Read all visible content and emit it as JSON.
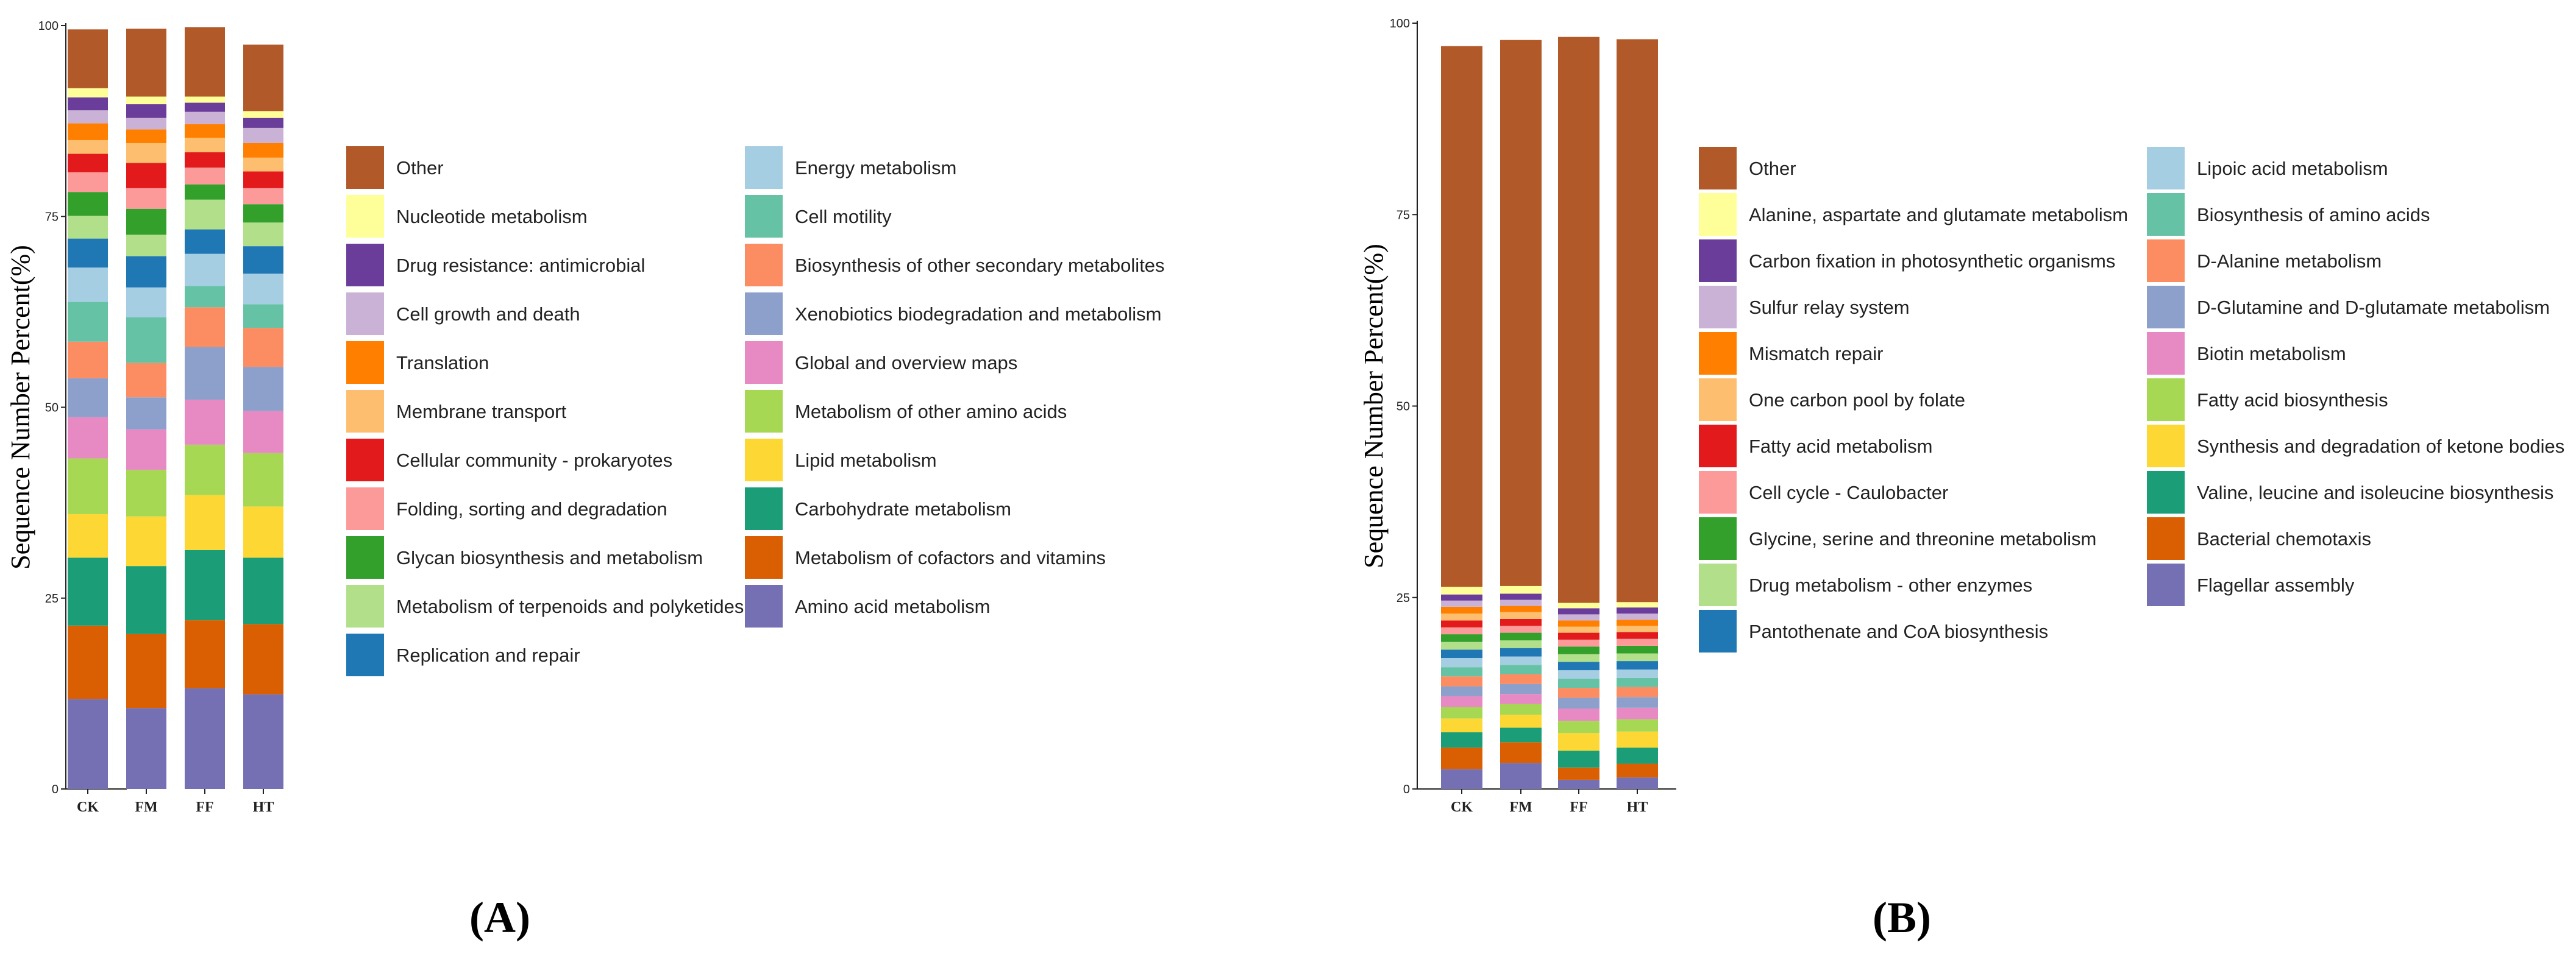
{
  "chart_data": [
    {
      "type": "bar",
      "stacked": true,
      "panel_label": "(A)",
      "ylabel": "Sequence Number Percent(%)",
      "ylim": [
        0,
        100
      ],
      "yticks": [
        "0",
        "25",
        "50",
        "75",
        "100"
      ],
      "categories": [
        "CK",
        "FM",
        "FF",
        "HT"
      ],
      "series": [
        {
          "name": "Amino acid metabolism",
          "color": "#7570B3",
          "values": [
            11.8,
            10.6,
            13.2,
            12.4
          ]
        },
        {
          "name": "Metabolism of cofactors and vitamins",
          "color": "#D95F02",
          "values": [
            9.6,
            9.7,
            8.9,
            9.2
          ]
        },
        {
          "name": "Carbohydrate metabolism",
          "color": "#1B9E77",
          "values": [
            8.9,
            8.9,
            9.2,
            8.7
          ]
        },
        {
          "name": "Lipid metabolism",
          "color": "#FDD835",
          "values": [
            5.7,
            6.5,
            7.2,
            6.7
          ]
        },
        {
          "name": "Metabolism of other amino acids",
          "color": "#A6D854",
          "values": [
            7.3,
            6.1,
            6.6,
            7.0
          ]
        },
        {
          "name": "Global and overview maps",
          "color": "#E78AC3",
          "values": [
            5.4,
            5.3,
            5.9,
            5.5
          ]
        },
        {
          "name": "Xenobiotics biodegradation and metabolism",
          "color": "#8DA0CB",
          "values": [
            5.1,
            4.2,
            6.9,
            5.8
          ]
        },
        {
          "name": "Biosynthesis of other secondary metabolites",
          "color": "#FC8D62",
          "values": [
            4.8,
            4.5,
            5.2,
            5.1
          ]
        },
        {
          "name": "Cell motility",
          "color": "#66C2A5",
          "values": [
            5.2,
            6.0,
            2.8,
            3.1
          ]
        },
        {
          "name": "Energy metabolism",
          "color": "#A6CEE3",
          "values": [
            4.5,
            3.9,
            4.2,
            4.0
          ]
        },
        {
          "name": "Replication and repair",
          "color": "#1F78B4",
          "values": [
            3.8,
            4.1,
            3.2,
            3.6
          ]
        },
        {
          "name": "Metabolism of terpenoids and polyketides",
          "color": "#B2DF8A",
          "values": [
            3.0,
            2.8,
            3.9,
            3.1
          ]
        },
        {
          "name": "Glycan biosynthesis and metabolism",
          "color": "#33A02C",
          "values": [
            3.1,
            3.4,
            2.0,
            2.4
          ]
        },
        {
          "name": "Folding, sorting and degradation",
          "color": "#FB9A99",
          "values": [
            2.6,
            2.7,
            2.2,
            2.1
          ]
        },
        {
          "name": "Cellular community - prokaryotes",
          "color": "#E31A1C",
          "values": [
            2.4,
            3.3,
            2.0,
            2.2
          ]
        },
        {
          "name": "Membrane transport",
          "color": "#FDBF6F",
          "values": [
            1.8,
            2.6,
            1.9,
            1.8
          ]
        },
        {
          "name": "Translation",
          "color": "#FF7F00",
          "values": [
            2.2,
            1.8,
            1.8,
            1.9
          ]
        },
        {
          "name": "Cell growth and death",
          "color": "#CAB2D6",
          "values": [
            1.7,
            1.5,
            1.6,
            2.0
          ]
        },
        {
          "name": "Drug resistance: antimicrobial",
          "color": "#6A3D9A",
          "values": [
            1.7,
            1.8,
            1.2,
            1.3
          ]
        },
        {
          "name": "Nucleotide metabolism",
          "color": "#FFFF99",
          "values": [
            1.2,
            1.0,
            0.8,
            0.9
          ]
        },
        {
          "name": "Other",
          "color": "#B15928",
          "values": [
            7.7,
            8.9,
            9.1,
            8.7
          ]
        }
      ],
      "legend_col1": [
        "Other",
        "Nucleotide metabolism",
        "Drug resistance: antimicrobial",
        "Cell growth and death",
        "Translation",
        "Membrane transport",
        "Cellular community - prokaryotes",
        "Folding, sorting and degradation",
        "Glycan biosynthesis and metabolism",
        "Metabolism of terpenoids and polyketides",
        "Replication and repair"
      ],
      "legend_col2": [
        "Energy metabolism",
        "Cell motility",
        "Biosynthesis of other secondary metabolites",
        "Xenobiotics biodegradation and metabolism",
        "Global and overview maps",
        "Metabolism of other amino acids",
        "Lipid metabolism",
        "Carbohydrate metabolism",
        "Metabolism of cofactors and vitamins",
        "Amino acid metabolism"
      ]
    },
    {
      "type": "bar",
      "stacked": true,
      "panel_label": "(B)",
      "ylabel": "Sequence Number Percent(%)",
      "ylim": [
        0,
        100
      ],
      "yticks": [
        "0",
        "25",
        "50",
        "75",
        "100"
      ],
      "categories": [
        "CK",
        "FM",
        "FF",
        "HT"
      ],
      "series": [
        {
          "name": "Flagellar assembly",
          "color": "#7570B3",
          "values": [
            2.6,
            3.4,
            1.2,
            1.5
          ]
        },
        {
          "name": "Bacterial chemotaxis",
          "color": "#D95F02",
          "values": [
            2.8,
            2.7,
            1.6,
            1.8
          ]
        },
        {
          "name": "Valine, leucine and isoleucine biosynthesis",
          "color": "#1B9E77",
          "values": [
            2.0,
            1.9,
            2.2,
            2.1
          ]
        },
        {
          "name": "Synthesis and degradation of ketone bodies",
          "color": "#FDD835",
          "values": [
            1.8,
            1.7,
            2.3,
            2.1
          ]
        },
        {
          "name": "Fatty acid biosynthesis",
          "color": "#A6D854",
          "values": [
            1.5,
            1.4,
            1.6,
            1.6
          ]
        },
        {
          "name": "Biotin metabolism",
          "color": "#E78AC3",
          "values": [
            1.4,
            1.3,
            1.6,
            1.5
          ]
        },
        {
          "name": "D-Glutamine and D-glutamate metabolism",
          "color": "#8DA0CB",
          "values": [
            1.3,
            1.3,
            1.4,
            1.4
          ]
        },
        {
          "name": "D-Alanine metabolism",
          "color": "#FC8D62",
          "values": [
            1.3,
            1.3,
            1.3,
            1.3
          ]
        },
        {
          "name": "Biosynthesis of amino acids",
          "color": "#66C2A5",
          "values": [
            1.2,
            1.2,
            1.2,
            1.2
          ]
        },
        {
          "name": "Lipoic acid metabolism",
          "color": "#A6CEE3",
          "values": [
            1.2,
            1.1,
            1.1,
            1.1
          ]
        },
        {
          "name": "Pantothenate and CoA biosynthesis",
          "color": "#1F78B4",
          "values": [
            1.1,
            1.1,
            1.1,
            1.1
          ]
        },
        {
          "name": "Drug metabolism - other enzymes",
          "color": "#B2DF8A",
          "values": [
            1.0,
            1.0,
            1.0,
            1.0
          ]
        },
        {
          "name": "Glycine, serine and threonine metabolism",
          "color": "#33A02C",
          "values": [
            1.0,
            1.0,
            1.0,
            1.0
          ]
        },
        {
          "name": "Cell cycle - Caulobacter",
          "color": "#FB9A99",
          "values": [
            0.9,
            0.9,
            0.9,
            0.9
          ]
        },
        {
          "name": "Fatty acid metabolism",
          "color": "#E31A1C",
          "values": [
            0.9,
            0.9,
            0.9,
            0.9
          ]
        },
        {
          "name": "One carbon pool by folate",
          "color": "#FDBF6F",
          "values": [
            0.9,
            0.9,
            0.8,
            0.8
          ]
        },
        {
          "name": "Mismatch repair",
          "color": "#FF7F00",
          "values": [
            0.9,
            0.8,
            0.8,
            0.8
          ]
        },
        {
          "name": "Sulfur relay system",
          "color": "#CAB2D6",
          "values": [
            0.8,
            0.8,
            0.8,
            0.8
          ]
        },
        {
          "name": "Carbon fixation in photosynthetic organisms",
          "color": "#6A3D9A",
          "values": [
            0.8,
            0.8,
            0.8,
            0.8
          ]
        },
        {
          "name": "Alanine, aspartate and glutamate metabolism",
          "color": "#FFFF99",
          "values": [
            1.0,
            1.0,
            0.7,
            0.7
          ]
        },
        {
          "name": "Other",
          "color": "#B15928",
          "values": [
            70.6,
            71.3,
            73.9,
            73.5
          ]
        }
      ],
      "legend_col1": [
        "Other",
        "Alanine, aspartate and glutamate metabolism",
        "Carbon fixation in photosynthetic organisms",
        "Sulfur relay system",
        "Mismatch repair",
        "One carbon pool by folate",
        "Fatty acid metabolism",
        "Cell cycle - Caulobacter",
        "Glycine, serine and threonine metabolism",
        "Drug metabolism - other enzymes",
        "Pantothenate and CoA biosynthesis"
      ],
      "legend_col2": [
        "Lipoic acid metabolism",
        "Biosynthesis of amino acids",
        "D-Alanine metabolism",
        "D-Glutamine and D-glutamate metabolism",
        "Biotin metabolism",
        "Fatty acid biosynthesis",
        "Synthesis and degradation of ketone bodies",
        "Valine, leucine and isoleucine biosynthesis",
        "Bacterial chemotaxis",
        "Flagellar assembly"
      ]
    }
  ]
}
